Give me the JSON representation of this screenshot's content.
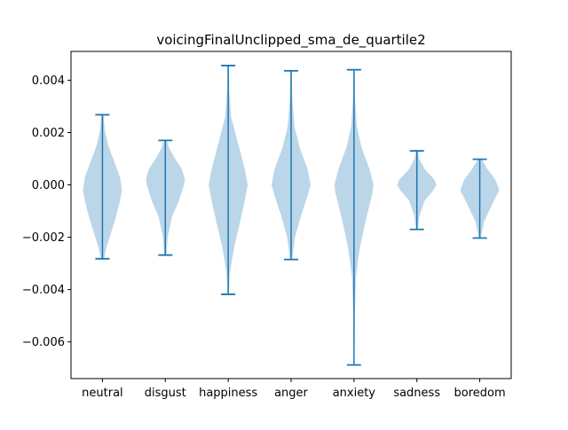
{
  "chart_data": {
    "type": "violin",
    "title": "voicingFinalUnclipped_sma_de_quartile2",
    "xlabel": "",
    "ylabel": "",
    "categories": [
      "neutral",
      "disgust",
      "happiness",
      "anger",
      "anxiety",
      "sadness",
      "boredom"
    ],
    "y_ticks": [
      0.004,
      0.002,
      0.0,
      -0.002,
      -0.004,
      -0.006
    ],
    "y_tick_labels": [
      "0.004",
      "0.002",
      "0.000",
      "−0.002",
      "−0.004",
      "−0.006"
    ],
    "ylim": [
      -0.0074,
      0.0051
    ],
    "grid": false,
    "violins": [
      {
        "name": "neutral",
        "min": -0.00282,
        "max": 0.00268,
        "center": -0.0002,
        "width": 0.0175,
        "profile": [
          [
            -0.0028,
            0.08
          ],
          [
            -0.0024,
            0.2
          ],
          [
            -0.0018,
            0.45
          ],
          [
            -0.0012,
            0.7
          ],
          [
            -0.0006,
            0.9
          ],
          [
            -0.0002,
            1.0
          ],
          [
            0.0003,
            0.9
          ],
          [
            0.0009,
            0.6
          ],
          [
            0.0015,
            0.3
          ],
          [
            0.0021,
            0.12
          ],
          [
            0.00268,
            0.05
          ]
        ]
      },
      {
        "name": "disgust",
        "min": -0.00268,
        "max": 0.0017,
        "center": 0.0001,
        "width": 0.0185,
        "profile": [
          [
            -0.0027,
            0.05
          ],
          [
            -0.002,
            0.12
          ],
          [
            -0.0012,
            0.35
          ],
          [
            -0.0006,
            0.7
          ],
          [
            0.0,
            0.95
          ],
          [
            0.0002,
            1.0
          ],
          [
            0.0006,
            0.85
          ],
          [
            0.001,
            0.5
          ],
          [
            0.0014,
            0.2
          ],
          [
            0.0017,
            0.08
          ]
        ]
      },
      {
        "name": "happiness",
        "min": -0.00418,
        "max": 0.00456,
        "center": 0.0,
        "width": 0.015,
        "profile": [
          [
            -0.0042,
            0.03
          ],
          [
            -0.0034,
            0.08
          ],
          [
            -0.0024,
            0.3
          ],
          [
            -0.0016,
            0.55
          ],
          [
            -0.0006,
            0.85
          ],
          [
            0.0,
            1.0
          ],
          [
            0.0006,
            0.85
          ],
          [
            0.0016,
            0.5
          ],
          [
            0.0026,
            0.15
          ],
          [
            0.0036,
            0.06
          ],
          [
            0.00456,
            0.03
          ]
        ]
      },
      {
        "name": "anger",
        "min": -0.00285,
        "max": 0.00436,
        "center": 0.0,
        "width": 0.0155,
        "profile": [
          [
            -0.00285,
            0.05
          ],
          [
            -0.002,
            0.2
          ],
          [
            -0.0012,
            0.5
          ],
          [
            -0.0004,
            0.85
          ],
          [
            0.0,
            1.0
          ],
          [
            0.0006,
            0.85
          ],
          [
            0.0014,
            0.45
          ],
          [
            0.0022,
            0.18
          ],
          [
            0.0032,
            0.07
          ],
          [
            0.00436,
            0.03
          ]
        ]
      },
      {
        "name": "anxiety",
        "min": -0.00688,
        "max": 0.0044,
        "center": 0.0,
        "width": 0.016,
        "profile": [
          [
            -0.0069,
            0.02
          ],
          [
            -0.005,
            0.04
          ],
          [
            -0.0035,
            0.1
          ],
          [
            -0.0024,
            0.3
          ],
          [
            -0.0012,
            0.65
          ],
          [
            -0.0003,
            0.95
          ],
          [
            0.0,
            1.0
          ],
          [
            0.0006,
            0.8
          ],
          [
            0.0014,
            0.4
          ],
          [
            0.0022,
            0.15
          ],
          [
            0.0032,
            0.06
          ],
          [
            0.0044,
            0.03
          ]
        ]
      },
      {
        "name": "sadness",
        "min": -0.0017,
        "max": 0.0013,
        "center": 0.0,
        "width": 0.0175,
        "profile": [
          [
            -0.0017,
            0.05
          ],
          [
            -0.0012,
            0.12
          ],
          [
            -0.0006,
            0.4
          ],
          [
            -0.0002,
            0.85
          ],
          [
            0.0,
            1.0
          ],
          [
            0.0002,
            0.9
          ],
          [
            0.0006,
            0.4
          ],
          [
            0.001,
            0.12
          ],
          [
            0.0013,
            0.05
          ]
        ]
      },
      {
        "name": "boredom",
        "min": -0.00203,
        "max": 0.00098,
        "center": -0.0002,
        "width": 0.019,
        "profile": [
          [
            -0.002,
            0.05
          ],
          [
            -0.0014,
            0.22
          ],
          [
            -0.0008,
            0.6
          ],
          [
            -0.0002,
            1.0
          ],
          [
            0.0002,
            0.8
          ],
          [
            0.0006,
            0.4
          ],
          [
            0.00098,
            0.1
          ]
        ]
      }
    ],
    "colors": {
      "body": "#1f77b4",
      "body_opacity": 0.3,
      "line": "#1f77b4"
    }
  }
}
